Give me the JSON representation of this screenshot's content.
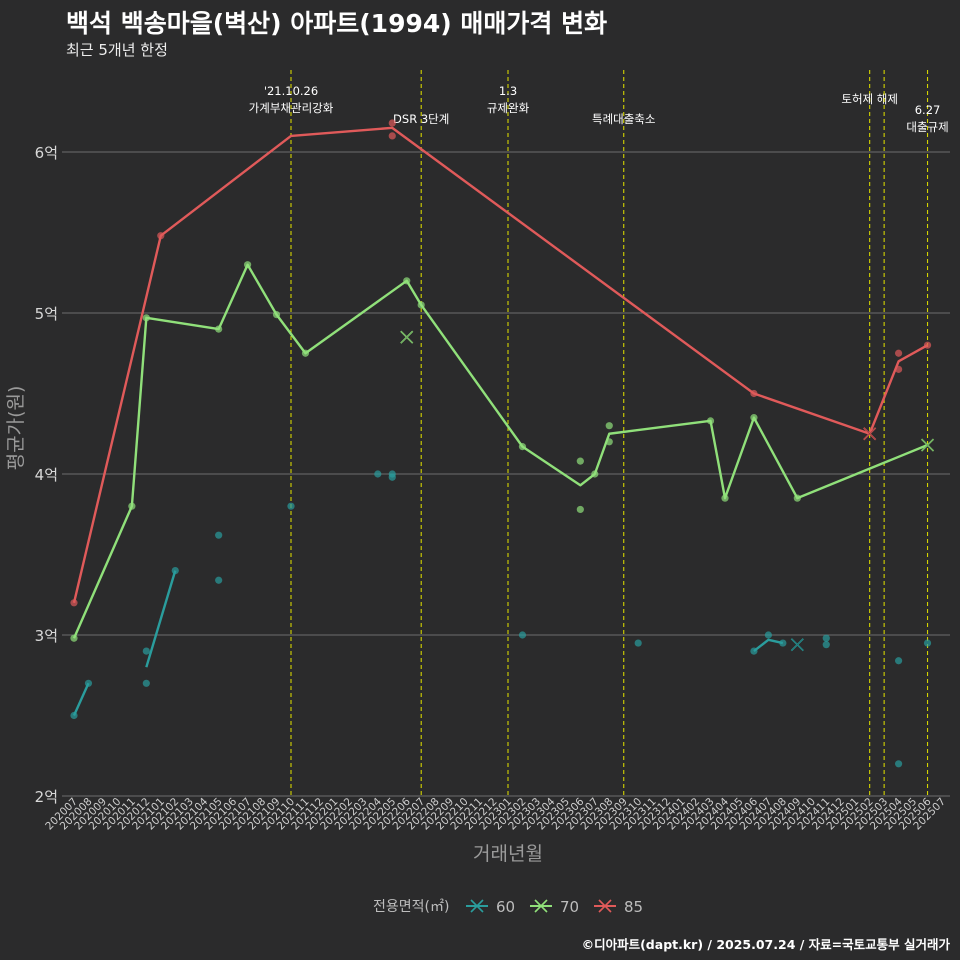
{
  "title": "백석 백송마을(벽산) 아파트(1994) 매매가격 변화",
  "subtitle": "최근 5개년 한정",
  "footer": "©디아파트(dapt.kr) / 2025.07.24 / 자료=국토교통부 실거래가",
  "colors": {
    "s60": "#2a9d9d",
    "s70": "#90e07a",
    "s85": "#e05a5a",
    "vline": "#d4d400",
    "grid": "#6e6e6e",
    "text": "#bdbdbd"
  },
  "chart_data": {
    "type": "line",
    "xlabel": "거래년월",
    "ylabel": "평균가(원)",
    "ylim": [
      2,
      6.4
    ],
    "yticks": [
      2,
      3,
      4,
      5,
      6
    ],
    "ytick_labels": [
      "2억",
      "3억",
      "4억",
      "5억",
      "6억"
    ],
    "categories": [
      "202007",
      "202008",
      "202009",
      "202010",
      "202011",
      "202012",
      "202101",
      "202102",
      "202103",
      "202104",
      "202105",
      "202106",
      "202107",
      "202108",
      "202109",
      "202110",
      "202111",
      "202112",
      "202201",
      "202202",
      "202203",
      "202204",
      "202205",
      "202206",
      "202207",
      "202208",
      "202209",
      "202210",
      "202211",
      "202212",
      "202301",
      "202302",
      "202303",
      "202304",
      "202305",
      "202306",
      "202307",
      "202308",
      "202309",
      "202310",
      "202311",
      "202312",
      "202401",
      "202402",
      "202403",
      "202404",
      "202405",
      "202406",
      "202407",
      "202408",
      "202409",
      "202410",
      "202411",
      "202412",
      "202501",
      "202502",
      "202503",
      "202504",
      "202505",
      "202506",
      "202507"
    ],
    "legend_title": "전용면적(㎡)",
    "legend_position": "bottom",
    "series": [
      {
        "name": "60",
        "color": "#2a9d9d",
        "line": [
          [
            "202007",
            2.5
          ],
          [
            "202008",
            2.7
          ],
          null,
          [
            "202012",
            2.8
          ],
          [
            "202102",
            3.4
          ],
          null,
          [
            "202406",
            2.9
          ],
          [
            "202407",
            2.97
          ],
          [
            "202408",
            2.95
          ]
        ],
        "points": [
          [
            "202007",
            2.5
          ],
          [
            "202008",
            2.7
          ],
          [
            "202012",
            2.9
          ],
          [
            "202012",
            2.7
          ],
          [
            "202102",
            3.4
          ],
          [
            "202105",
            3.62
          ],
          [
            "202105",
            3.34
          ],
          [
            "202110",
            3.8
          ],
          [
            "202204",
            4.0
          ],
          [
            "202205",
            4.0
          ],
          [
            "202205",
            3.98
          ],
          [
            "202302",
            3.0
          ],
          [
            "202310",
            2.95
          ],
          [
            "202406",
            2.9
          ],
          [
            "202407",
            3.0
          ],
          [
            "202408",
            2.95
          ],
          [
            "202411",
            2.98
          ],
          [
            "202411",
            2.94
          ],
          [
            "202504",
            2.84
          ],
          [
            "202504",
            2.2
          ],
          [
            "202506",
            2.95
          ]
        ],
        "cross": [
          [
            "202409",
            2.94
          ]
        ]
      },
      {
        "name": "70",
        "color": "#90e07a",
        "line": [
          [
            "202007",
            2.98
          ],
          [
            "202011",
            3.8
          ],
          [
            "202012",
            4.97
          ],
          [
            "202105",
            4.9
          ],
          [
            "202107",
            5.3
          ],
          [
            "202109",
            4.99
          ],
          [
            "202111",
            4.75
          ],
          [
            "202206",
            5.2
          ],
          [
            "202207",
            5.05
          ],
          [
            "202302",
            4.17
          ],
          [
            "202306",
            3.93
          ],
          [
            "202307",
            4.0
          ],
          [
            "202308",
            4.25
          ],
          [
            "202403",
            4.33
          ],
          [
            "202404",
            3.85
          ],
          [
            "202406",
            4.35
          ],
          [
            "202409",
            3.85
          ],
          [
            "202506",
            4.18
          ]
        ],
        "points": [
          [
            "202007",
            2.98
          ],
          [
            "202011",
            3.8
          ],
          [
            "202012",
            4.97
          ],
          [
            "202105",
            4.9
          ],
          [
            "202107",
            5.3
          ],
          [
            "202109",
            4.99
          ],
          [
            "202111",
            4.75
          ],
          [
            "202206",
            5.2
          ],
          [
            "202207",
            5.05
          ],
          [
            "202302",
            4.17
          ],
          [
            "202306",
            4.08
          ],
          [
            "202306",
            3.78
          ],
          [
            "202307",
            4.0
          ],
          [
            "202308",
            4.3
          ],
          [
            "202308",
            4.2
          ],
          [
            "202403",
            4.33
          ],
          [
            "202404",
            3.85
          ],
          [
            "202406",
            4.35
          ],
          [
            "202409",
            3.85
          ]
        ],
        "cross": [
          [
            "202206",
            4.85
          ],
          [
            "202506",
            4.18
          ]
        ]
      },
      {
        "name": "85",
        "color": "#e05a5a",
        "line": [
          [
            "202007",
            3.2
          ],
          [
            "202101",
            5.48
          ],
          [
            "202110",
            6.1
          ],
          [
            "202205",
            6.15
          ],
          [
            "202406",
            4.5
          ],
          [
            "202502",
            4.25
          ],
          [
            "202504",
            4.7
          ],
          [
            "202506",
            4.8
          ]
        ],
        "points": [
          [
            "202007",
            3.2
          ],
          [
            "202101",
            5.48
          ],
          [
            "202205",
            6.18
          ],
          [
            "202205",
            6.1
          ],
          [
            "202406",
            4.5
          ],
          [
            "202504",
            4.75
          ],
          [
            "202504",
            4.65
          ],
          [
            "202506",
            4.8
          ]
        ],
        "cross": [
          [
            "202502",
            4.25
          ]
        ]
      }
    ],
    "annotations": [
      {
        "x": "202110",
        "lines": [
          "'21.10.26",
          "가계부채관리강화"
        ]
      },
      {
        "x": "202207",
        "lines": [
          "DSR 3단계"
        ]
      },
      {
        "x": "202301",
        "lines": [
          "1.3",
          "규제완화"
        ]
      },
      {
        "x": "202309",
        "lines": [
          "특례대출축소"
        ]
      },
      {
        "x": "202502",
        "lines": [
          "토허제 해제"
        ]
      },
      {
        "x": "202503",
        "lines": []
      },
      {
        "x": "202506",
        "lines": [
          "6.27",
          "대출규제"
        ]
      }
    ]
  }
}
